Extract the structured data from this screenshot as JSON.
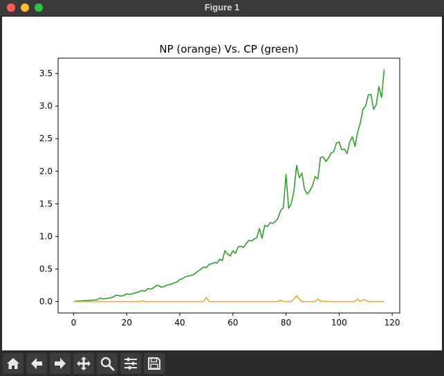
{
  "window": {
    "title": "Figure 1"
  },
  "toolbar": {
    "buttons": [
      {
        "name": "home",
        "icon": "home-icon"
      },
      {
        "name": "back",
        "icon": "arrow-left-icon"
      },
      {
        "name": "forward",
        "icon": "arrow-right-icon"
      },
      {
        "name": "pan",
        "icon": "move-icon"
      },
      {
        "name": "zoom",
        "icon": "magnifier-icon"
      },
      {
        "name": "configure-subplots",
        "icon": "sliders-icon"
      },
      {
        "name": "save",
        "icon": "floppy-disk-icon"
      }
    ]
  },
  "chart_data": {
    "type": "line",
    "title": "NP (orange) Vs. CP (green)",
    "xlabel": "",
    "ylabel": "",
    "xlim": [
      -5.85,
      122.85
    ],
    "ylim": [
      -0.175,
      3.735
    ],
    "xticks": [
      0,
      20,
      40,
      60,
      80,
      100,
      120
    ],
    "yticks": [
      0.0,
      0.5,
      1.0,
      1.5,
      2.0,
      2.5,
      3.0,
      3.5
    ],
    "grid": false,
    "series": [
      {
        "color": "#2ca02c",
        "x": [
          0,
          1,
          2,
          3,
          4,
          5,
          6,
          7,
          8,
          9,
          10,
          11,
          12,
          13,
          14,
          15,
          16,
          17,
          18,
          19,
          20,
          21,
          22,
          23,
          24,
          25,
          26,
          27,
          28,
          29,
          30,
          31,
          32,
          33,
          34,
          35,
          36,
          37,
          38,
          39,
          40,
          41,
          42,
          43,
          44,
          45,
          46,
          47,
          48,
          49,
          50,
          51,
          52,
          53,
          54,
          55,
          56,
          57,
          58,
          59,
          60,
          61,
          62,
          63,
          64,
          65,
          66,
          67,
          68,
          69,
          70,
          71,
          72,
          73,
          74,
          75,
          76,
          77,
          78,
          79,
          80,
          81,
          82,
          83,
          84,
          85,
          86,
          87,
          88,
          89,
          90,
          91,
          92,
          93,
          94,
          95,
          96,
          97,
          98,
          99,
          100,
          101,
          102,
          103,
          104,
          105,
          106,
          107,
          108,
          109,
          110,
          111,
          112,
          113,
          114,
          115,
          116,
          117
        ],
        "values": [
          0.0,
          0.005,
          0.01,
          0.012,
          0.015,
          0.018,
          0.02,
          0.022,
          0.025,
          0.03,
          0.055,
          0.04,
          0.045,
          0.05,
          0.06,
          0.07,
          0.1,
          0.09,
          0.085,
          0.095,
          0.12,
          0.11,
          0.12,
          0.13,
          0.14,
          0.16,
          0.17,
          0.16,
          0.2,
          0.19,
          0.21,
          0.24,
          0.25,
          0.22,
          0.23,
          0.25,
          0.26,
          0.27,
          0.29,
          0.3,
          0.34,
          0.35,
          0.38,
          0.39,
          0.4,
          0.41,
          0.44,
          0.47,
          0.5,
          0.53,
          0.52,
          0.57,
          0.58,
          0.6,
          0.59,
          0.65,
          0.63,
          0.78,
          0.73,
          0.7,
          0.78,
          0.74,
          0.84,
          0.85,
          0.83,
          0.89,
          0.94,
          0.93,
          0.96,
          0.98,
          1.12,
          0.97,
          1.17,
          1.15,
          1.21,
          1.2,
          1.23,
          1.28,
          1.4,
          1.44,
          1.95,
          1.43,
          1.5,
          1.7,
          2.09,
          1.9,
          1.97,
          1.72,
          1.65,
          1.7,
          1.78,
          1.92,
          1.88,
          2.21,
          2.22,
          2.15,
          2.2,
          2.28,
          2.3,
          2.43,
          2.45,
          2.33,
          2.34,
          2.27,
          2.45,
          2.53,
          2.38,
          2.6,
          2.74,
          2.95,
          3.0,
          3.17,
          3.18,
          2.95,
          3.02,
          3.3,
          3.13,
          3.56
        ]
      },
      {
        "color": "#f5a623",
        "x": [
          0,
          1,
          2,
          3,
          4,
          5,
          6,
          7,
          8,
          9,
          10,
          11,
          12,
          13,
          14,
          15,
          16,
          17,
          18,
          19,
          20,
          21,
          22,
          23,
          24,
          25,
          26,
          27,
          28,
          29,
          30,
          31,
          32,
          33,
          34,
          35,
          36,
          37,
          38,
          39,
          40,
          41,
          42,
          43,
          44,
          45,
          46,
          47,
          48,
          49,
          50,
          51,
          52,
          53,
          54,
          55,
          56,
          57,
          58,
          59,
          60,
          61,
          62,
          63,
          64,
          65,
          66,
          67,
          68,
          69,
          70,
          71,
          72,
          73,
          74,
          75,
          76,
          77,
          78,
          79,
          80,
          81,
          82,
          83,
          84,
          85,
          86,
          87,
          88,
          89,
          90,
          91,
          92,
          93,
          94,
          95,
          96,
          97,
          98,
          99,
          100,
          101,
          102,
          103,
          104,
          105,
          106,
          107,
          108,
          109,
          110,
          111,
          112,
          113,
          114,
          115,
          116,
          117
        ],
        "values": [
          0.0,
          0.0,
          0.0,
          0.0,
          0.0,
          0.0,
          0.0,
          0.0,
          0.0,
          0.0,
          0.0,
          0.0,
          0.0,
          0.0,
          0.0,
          0.0,
          0.0,
          0.0,
          0.0,
          0.0,
          0.0,
          0.0,
          0.0,
          0.0,
          0.0,
          0.0,
          0.012,
          0.0,
          0.0,
          0.0,
          0.0,
          0.0,
          0.0,
          0.0,
          0.0,
          0.0,
          0.0,
          0.0,
          0.0,
          0.0,
          0.0,
          0.0,
          0.0,
          0.0,
          0.0,
          0.0,
          0.0,
          0.0,
          0.0,
          0.0,
          0.065,
          0.0,
          0.0,
          0.0,
          0.0,
          0.0,
          0.0,
          0.0,
          0.0,
          0.0,
          0.0,
          0.0,
          0.0,
          0.0,
          0.0,
          0.0,
          0.0,
          0.0,
          0.0,
          0.0,
          0.0,
          0.0,
          0.0,
          0.0,
          0.0,
          0.0,
          0.0,
          0.0,
          0.022,
          0.0,
          0.0,
          0.0,
          0.0,
          0.04,
          0.09,
          0.04,
          0.0,
          0.0,
          0.0,
          0.0,
          0.0,
          0.0,
          0.045,
          0.0,
          0.012,
          0.0,
          0.0,
          0.0,
          0.0,
          0.0,
          0.0,
          0.0,
          0.0,
          0.0,
          0.0,
          0.0,
          0.0,
          0.04,
          0.0,
          0.03,
          0.02,
          0.0,
          0.0,
          0.0,
          0.0,
          0.0,
          0.0,
          0.0
        ]
      }
    ]
  }
}
